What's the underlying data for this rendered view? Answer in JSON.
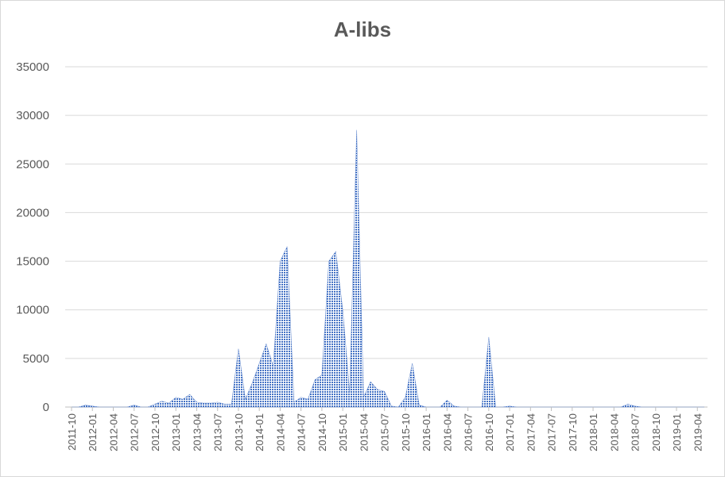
{
  "chart_data": {
    "type": "area",
    "title": "A-libs",
    "xlabel": "",
    "ylabel": "",
    "ylim": [
      0,
      35000
    ],
    "yticks": [
      "0",
      "5000",
      "10000",
      "15000",
      "20000",
      "25000",
      "30000",
      "35000"
    ],
    "grid": true,
    "legend": "none",
    "fill_color": "#4472c4",
    "xticks": [
      "2011-10",
      "2012-01",
      "2012-04",
      "2012-07",
      "2012-10",
      "2013-01",
      "2013-04",
      "2013-07",
      "2013-10",
      "2014-01",
      "2014-04",
      "2014-07",
      "2014-10",
      "2015-01",
      "2015-04",
      "2015-07",
      "2015-10",
      "2016-01",
      "2016-04",
      "2016-07",
      "2016-10",
      "2017-01",
      "2017-04",
      "2017-07",
      "2017-10",
      "2018-01",
      "2018-04",
      "2018-07",
      "2018-10",
      "2019-01",
      "2019-04"
    ],
    "x": [
      "2011-10",
      "2011-11",
      "2011-12",
      "2012-01",
      "2012-02",
      "2012-03",
      "2012-04",
      "2012-05",
      "2012-06",
      "2012-07",
      "2012-08",
      "2012-09",
      "2012-10",
      "2012-11",
      "2012-12",
      "2013-01",
      "2013-02",
      "2013-03",
      "2013-04",
      "2013-05",
      "2013-06",
      "2013-07",
      "2013-08",
      "2013-09",
      "2013-10",
      "2013-11",
      "2013-12",
      "2014-01",
      "2014-02",
      "2014-03",
      "2014-04",
      "2014-05",
      "2014-06",
      "2014-07",
      "2014-08",
      "2014-09",
      "2014-10",
      "2014-11",
      "2014-12",
      "2015-01",
      "2015-02",
      "2015-03",
      "2015-04",
      "2015-05",
      "2015-06",
      "2015-07",
      "2015-08",
      "2015-09",
      "2015-10",
      "2015-11",
      "2015-12",
      "2016-01",
      "2016-02",
      "2016-03",
      "2016-04",
      "2016-05",
      "2016-06",
      "2016-07",
      "2016-08",
      "2016-09",
      "2016-10",
      "2016-11",
      "2016-12",
      "2017-01",
      "2017-02",
      "2017-03",
      "2017-04",
      "2017-05",
      "2017-06",
      "2017-07",
      "2017-08",
      "2017-09",
      "2017-10",
      "2017-11",
      "2017-12",
      "2018-01",
      "2018-02",
      "2018-03",
      "2018-04",
      "2018-05",
      "2018-06",
      "2018-07",
      "2018-08",
      "2018-09",
      "2018-10",
      "2018-11",
      "2018-12",
      "2019-01",
      "2019-02",
      "2019-03",
      "2019-04",
      "2019-05"
    ],
    "values": [
      0,
      0,
      200,
      100,
      0,
      0,
      0,
      0,
      0,
      200,
      0,
      0,
      300,
      600,
      400,
      1000,
      800,
      1300,
      500,
      400,
      400,
      500,
      300,
      300,
      6000,
      800,
      2500,
      4500,
      6500,
      4200,
      15000,
      16500,
      500,
      1000,
      800,
      2800,
      3300,
      15000,
      16000,
      10000,
      1500,
      28500,
      1000,
      2600,
      1800,
      1600,
      100,
      0,
      1000,
      4500,
      200,
      0,
      0,
      0,
      700,
      100,
      0,
      0,
      0,
      0,
      7200,
      0,
      0,
      100,
      0,
      0,
      0,
      0,
      0,
      0,
      0,
      0,
      0,
      0,
      0,
      0,
      0,
      0,
      0,
      0,
      300,
      100,
      0,
      0,
      0,
      0,
      0,
      0,
      0,
      0,
      0,
      0
    ]
  }
}
